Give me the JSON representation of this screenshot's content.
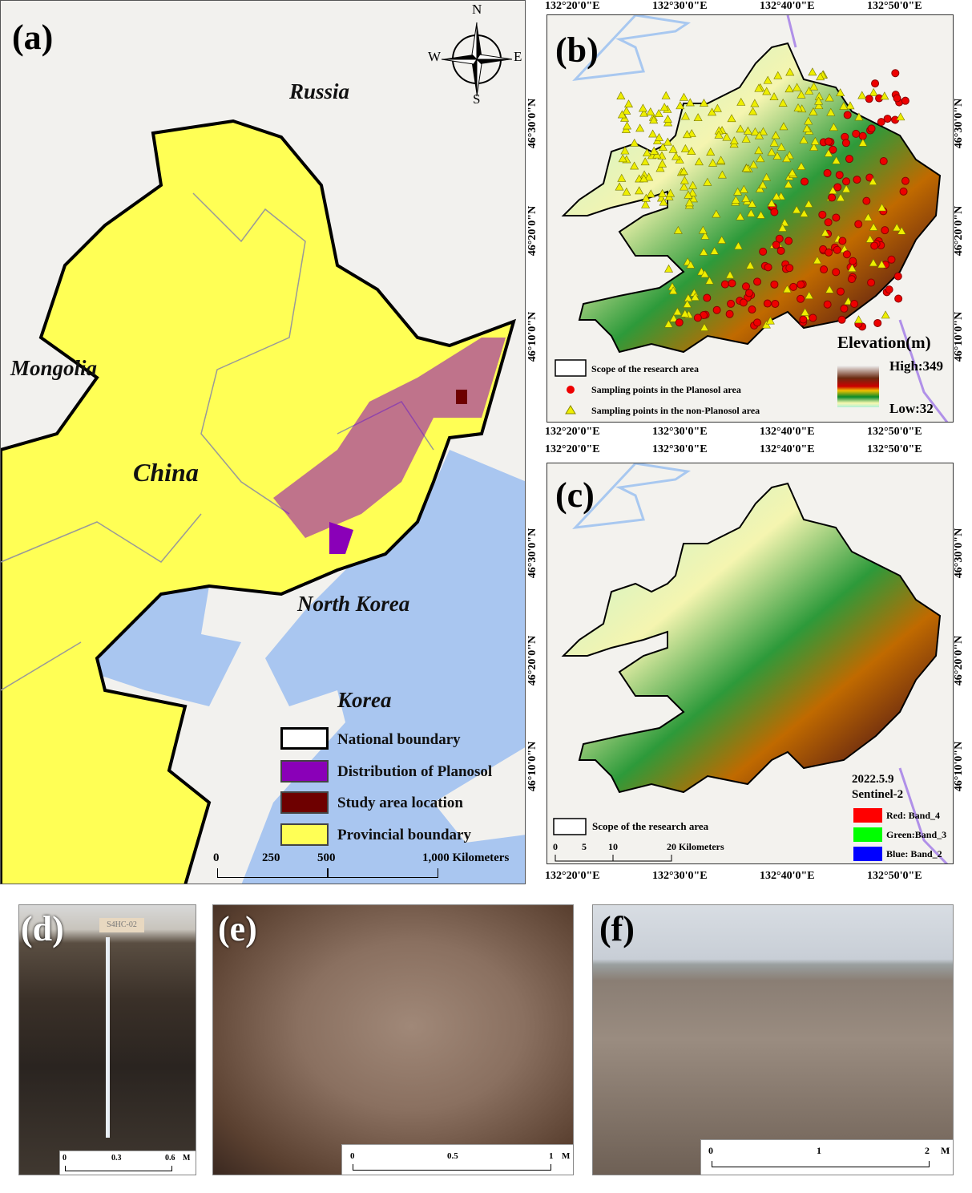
{
  "panel_a": {
    "letter": "(a)",
    "labels": {
      "russia": "Russia",
      "mongolia": "Mongolia",
      "china": "China",
      "north_korea": "North Korea",
      "korea": "Korea"
    },
    "compass": {
      "n": "N",
      "s": "S",
      "e": "E",
      "w": "W"
    },
    "legend": [
      {
        "label": "National boundary",
        "color": "#ffffff"
      },
      {
        "label": "Distribution of Planosol",
        "color": "#8a00b8"
      },
      {
        "label": "Study area location",
        "color": "#6e0000"
      },
      {
        "label": "Provincial boundary",
        "color": "#ffff55"
      }
    ],
    "scale": {
      "ticks": [
        "0",
        "250",
        "500",
        "1,000 Kilometers"
      ]
    },
    "colors": {
      "land": "#f2f1ee",
      "sea": "#a9c6f0",
      "province": "#ffff55",
      "planosol": "#8a00b8",
      "study": "#6e0000"
    }
  },
  "panel_b": {
    "letter": "(b)",
    "lon": [
      "132°20'0\"E",
      "132°30'0\"E",
      "132°40'0\"E",
      "132°50'0\"E"
    ],
    "lat": [
      "46°30'0\"N",
      "46°20'0\"N",
      "46°10'0\"N"
    ],
    "legend": {
      "scope": "Scope of the research area",
      "planosol": "Sampling points in the Planosol area",
      "non_planosol": "Sampling points in the non-Planosol area"
    },
    "elevation": {
      "title": "Elevation(m)",
      "high": "High:349",
      "low": "Low:32",
      "high_value": 349,
      "low_value": 32
    }
  },
  "panel_c": {
    "letter": "(c)",
    "lon": [
      "132°20'0\"E",
      "132°30'0\"E",
      "132°40'0\"E",
      "132°50'0\"E"
    ],
    "lat": [
      "46°30'0\"N",
      "46°20'0\"N",
      "46°10'0\"N"
    ],
    "date": "2022.5.9",
    "sensor": "Sentinel-2",
    "scope": "Scope of the research area",
    "bands": [
      {
        "label": "Red:   Band_4",
        "color": "#ff0000"
      },
      {
        "label": "Green:Band_3",
        "color": "#00ff00"
      },
      {
        "label": "Blue:   Band_2",
        "color": "#0000ff"
      }
    ],
    "scale": {
      "ticks": [
        "0",
        "5",
        "10",
        "20 Kilometers"
      ]
    }
  },
  "panel_d": {
    "letter": "(d)",
    "sign": "S4HC-02",
    "scale": [
      "0",
      "0.3",
      "0.6",
      "M"
    ]
  },
  "panel_e": {
    "letter": "(e)",
    "scale": [
      "0",
      "0.5",
      "1",
      "M"
    ]
  },
  "panel_f": {
    "letter": "(f)",
    "scale": [
      "0",
      "1",
      "2",
      "M"
    ]
  }
}
